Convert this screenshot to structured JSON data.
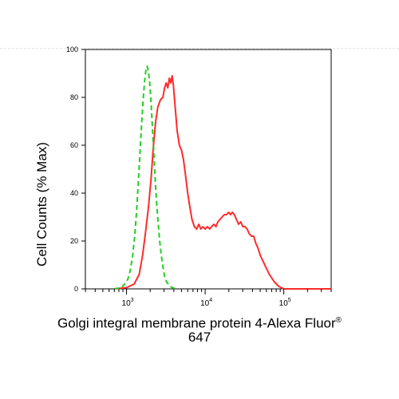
{
  "chart_data": {
    "type": "histogram-line",
    "title": "",
    "xlabel": {
      "text": "Golgi integral membrane protein 4-Alexa Fluor",
      "superscript": "®",
      "line2": "647"
    },
    "ylabel": "Cell Counts (% Max)",
    "xscale": "log",
    "xlim": [
      300,
      400000
    ],
    "ylim": [
      0,
      100
    ],
    "x_ticks": [
      {
        "value": 1000,
        "base": "10",
        "exp": "3"
      },
      {
        "value": 10000,
        "base": "10",
        "exp": "4"
      },
      {
        "value": 100000,
        "base": "10",
        "exp": "5"
      }
    ],
    "y_ticks": [
      {
        "value": 0,
        "label": "0"
      },
      {
        "value": 20,
        "label": "20"
      },
      {
        "value": 40,
        "label": "40"
      },
      {
        "value": 60,
        "label": "60"
      },
      {
        "value": 80,
        "label": "80"
      },
      {
        "value": 100,
        "label": "100"
      }
    ],
    "grid": false,
    "series": [
      {
        "color": "#ff2a2a",
        "style": "solid",
        "points": [
          [
            700,
            0
          ],
          [
            1000,
            0.5
          ],
          [
            1250,
            2
          ],
          [
            1450,
            6
          ],
          [
            1600,
            14
          ],
          [
            1750,
            24
          ],
          [
            1900,
            34
          ],
          [
            2050,
            46
          ],
          [
            2200,
            60
          ],
          [
            2350,
            70
          ],
          [
            2500,
            76
          ],
          [
            2700,
            79
          ],
          [
            2900,
            80
          ],
          [
            3050,
            84
          ],
          [
            3200,
            86
          ],
          [
            3350,
            84
          ],
          [
            3500,
            88
          ],
          [
            3650,
            86
          ],
          [
            3800,
            89
          ],
          [
            3950,
            85
          ],
          [
            4150,
            76
          ],
          [
            4400,
            66
          ],
          [
            4700,
            60
          ],
          [
            5000,
            58
          ],
          [
            5300,
            54
          ],
          [
            5600,
            48
          ],
          [
            6000,
            40
          ],
          [
            6400,
            34
          ],
          [
            6800,
            29
          ],
          [
            7300,
            26
          ],
          [
            7800,
            25
          ],
          [
            8300,
            27
          ],
          [
            8800,
            25
          ],
          [
            9400,
            26
          ],
          [
            10000,
            25
          ],
          [
            10700,
            26
          ],
          [
            11400,
            25
          ],
          [
            12100,
            26
          ],
          [
            12900,
            27
          ],
          [
            13700,
            26
          ],
          [
            14500,
            28
          ],
          [
            15400,
            29
          ],
          [
            16400,
            30
          ],
          [
            17500,
            31
          ],
          [
            18700,
            31
          ],
          [
            19900,
            32
          ],
          [
            21000,
            31
          ],
          [
            22200,
            32
          ],
          [
            23500,
            31
          ],
          [
            25000,
            29
          ],
          [
            26600,
            27
          ],
          [
            28300,
            28
          ],
          [
            30100,
            26
          ],
          [
            32100,
            26
          ],
          [
            34200,
            25
          ],
          [
            36400,
            23
          ],
          [
            38800,
            22
          ],
          [
            41400,
            22
          ],
          [
            44100,
            19
          ],
          [
            47000,
            17
          ],
          [
            50200,
            14
          ],
          [
            53600,
            12
          ],
          [
            57300,
            10
          ],
          [
            61300,
            8
          ],
          [
            65600,
            6
          ],
          [
            70300,
            4.5
          ],
          [
            75400,
            3
          ],
          [
            80800,
            2
          ],
          [
            86600,
            1
          ],
          [
            93000,
            0.5
          ],
          [
            100000,
            0
          ],
          [
            120000,
            0
          ],
          [
            400000,
            0
          ]
        ]
      },
      {
        "color": "#22cc22",
        "style": "dashed",
        "points": [
          [
            700,
            0
          ],
          [
            850,
            0.5
          ],
          [
            950,
            2
          ],
          [
            1040,
            4
          ],
          [
            1120,
            8
          ],
          [
            1200,
            14
          ],
          [
            1270,
            22
          ],
          [
            1340,
            32
          ],
          [
            1410,
            44
          ],
          [
            1480,
            56
          ],
          [
            1550,
            68
          ],
          [
            1620,
            78
          ],
          [
            1690,
            86
          ],
          [
            1760,
            91
          ],
          [
            1830,
            93
          ],
          [
            1900,
            91
          ],
          [
            1970,
            86
          ],
          [
            2050,
            78
          ],
          [
            2130,
            68
          ],
          [
            2220,
            57
          ],
          [
            2310,
            46
          ],
          [
            2410,
            36
          ],
          [
            2520,
            28
          ],
          [
            2640,
            20
          ],
          [
            2770,
            14
          ],
          [
            2910,
            9
          ],
          [
            3060,
            5
          ],
          [
            3220,
            3
          ],
          [
            3400,
            2
          ],
          [
            3600,
            1
          ],
          [
            3850,
            0.5
          ],
          [
            4200,
            0
          ]
        ]
      }
    ]
  }
}
